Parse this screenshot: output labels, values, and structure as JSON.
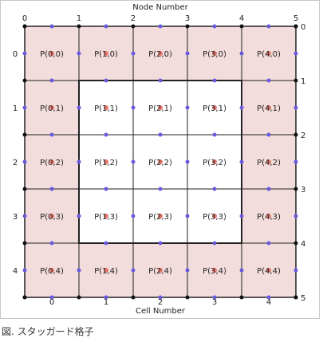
{
  "diagram": {
    "top_axis_title": "Node Number",
    "bottom_axis_title": "Cell Number",
    "node_indices": [
      "0",
      "1",
      "2",
      "3",
      "4",
      "5"
    ],
    "cell_indices": [
      "0",
      "1",
      "2",
      "3",
      "4"
    ],
    "cells": [
      [
        "P(0,0)",
        "P(1,0)",
        "P(2,0)",
        "P(3,0)",
        "P(4,0)"
      ],
      [
        "P(0,1)",
        "P(1,1)",
        "P(2,1)",
        "P(3,1)",
        "P(4,1)"
      ],
      [
        "P(0,2)",
        "P(1,2)",
        "P(2,2)",
        "P(3,2)",
        "P(4,2)"
      ],
      [
        "P(0,3)",
        "P(1,3)",
        "P(2,3)",
        "P(3,3)",
        "P(4,3)"
      ],
      [
        "P(0,4)",
        "P(1,4)",
        "P(2,4)",
        "P(3,4)",
        "P(4,4)"
      ]
    ],
    "colors": {
      "boundary_cell_fill": "#f2dcdc",
      "interior_cell_fill": "#ffffff",
      "grid_line": "#222222",
      "cell_center_dot": "#e8786e",
      "face_dot": "#6a5ae0",
      "node_dot": "#111111"
    }
  },
  "caption": "図. スタッガード格子"
}
